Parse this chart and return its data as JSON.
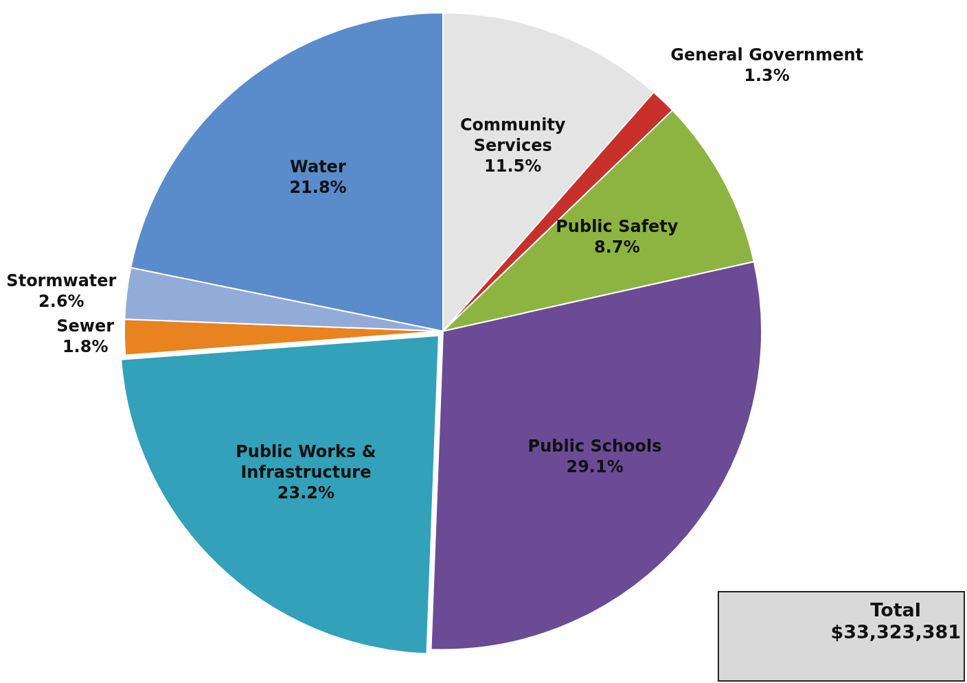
{
  "chart_data": {
    "type": "pie",
    "categories": [
      "Community Services",
      "General Government",
      "Public Safety",
      "Public Schools",
      "Public Works & Infrastructure",
      "Sewer",
      "Stormwater",
      "Water"
    ],
    "values": [
      11.5,
      1.3,
      8.7,
      29.1,
      23.2,
      1.8,
      2.6,
      21.8
    ],
    "value_labels": [
      "11.5%",
      "1.3%",
      "8.7%",
      "29.1%",
      "23.2%",
      "1.8%",
      "2.6%",
      "21.8%"
    ],
    "colors": [
      "#e4e4e4",
      "#c8302c",
      "#8db441",
      "#6b4b95",
      "#32a1b9",
      "#e8831f",
      "#93abd9",
      "#5a8bcb"
    ],
    "legend": false,
    "annotations": [
      "Total",
      "$33,323,381"
    ]
  }
}
